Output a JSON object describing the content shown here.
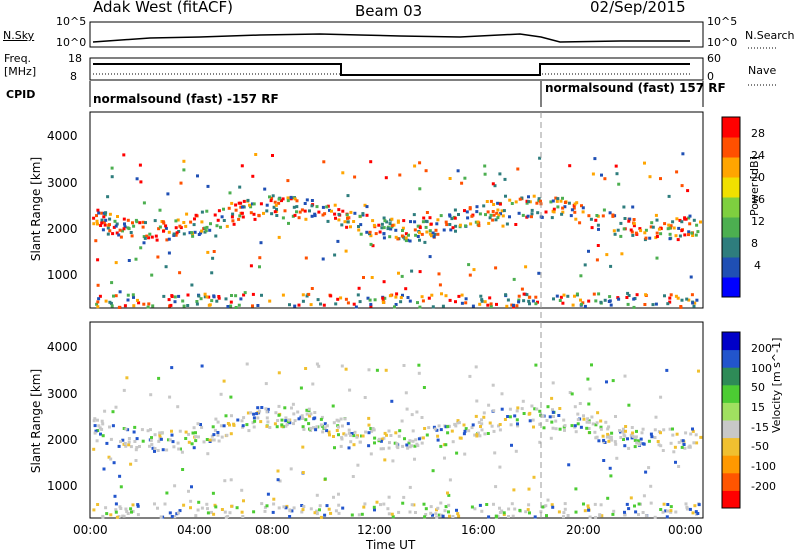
{
  "header": {
    "radar_title": "Adak West (fitACF)",
    "beam": "Beam 03",
    "date": "02/Sep/2015"
  },
  "panels": {
    "nsky_label": "N.Sky",
    "nsearch_label": "N.Search",
    "freq_label_line1": "Freq.",
    "freq_label_line2": "[MHz]",
    "nave_label": "Nave",
    "cpid_label": "CPID",
    "nsky_ticks": [
      "10^5",
      "10^0"
    ],
    "nsearch_ticks": [
      "10^5",
      "10^0"
    ],
    "freq_ticks": [
      "18",
      "8"
    ],
    "nave_ticks": [
      "60",
      "0"
    ],
    "cpid_segments": [
      {
        "label": "normalsound (fast) -157 RF"
      },
      {
        "label": "normalsound (fast) 157 RF"
      }
    ]
  },
  "colors": {
    "power_scale": [
      "#0000ff",
      "#1f4fb4",
      "#2e7d7d",
      "#4caf50",
      "#7ecf3f",
      "#f0e000",
      "#ffa500",
      "#ff5000",
      "#ff0000"
    ],
    "velocity_scale": [
      "#0000c8",
      "#2255cc",
      "#2e8b57",
      "#4ccc33",
      "#a0e060",
      "#c8c8c8",
      "#f0c030",
      "#ff9900",
      "#ff5500",
      "#ff0000"
    ]
  },
  "chart_data": [
    {
      "type": "heatmap",
      "title": "Power",
      "ylabel": "Slant Range [km]",
      "xlabel": "Time UT",
      "x_ticks": [
        "00:00",
        "04:00",
        "08:00",
        "12:00",
        "16:00",
        "20:00",
        "00:00"
      ],
      "y_ticks": [
        "1000",
        "2000",
        "3000",
        "4000"
      ],
      "ylim": [
        180,
        4500
      ],
      "colorbar_label": "Power [dB]",
      "colorbar_ticks": [
        "4",
        "8",
        "12",
        "16",
        "20",
        "24",
        "28"
      ],
      "colorbar_range": [
        0,
        32
      ]
    },
    {
      "type": "heatmap",
      "title": "Velocity",
      "ylabel": "Slant Range [km]",
      "xlabel": "Time UT",
      "x_ticks": [
        "00:00",
        "04:00",
        "08:00",
        "12:00",
        "16:00",
        "20:00",
        "00:00"
      ],
      "y_ticks": [
        "1000",
        "2000",
        "3000",
        "4000"
      ],
      "ylim": [
        180,
        4500
      ],
      "colorbar_label": "Velocity [m s^-1]",
      "colorbar_ticks": [
        "200",
        "100",
        "50",
        "15",
        "-15",
        "-50",
        "-100",
        "-200"
      ],
      "colorbar_range": [
        -250,
        250
      ]
    }
  ]
}
